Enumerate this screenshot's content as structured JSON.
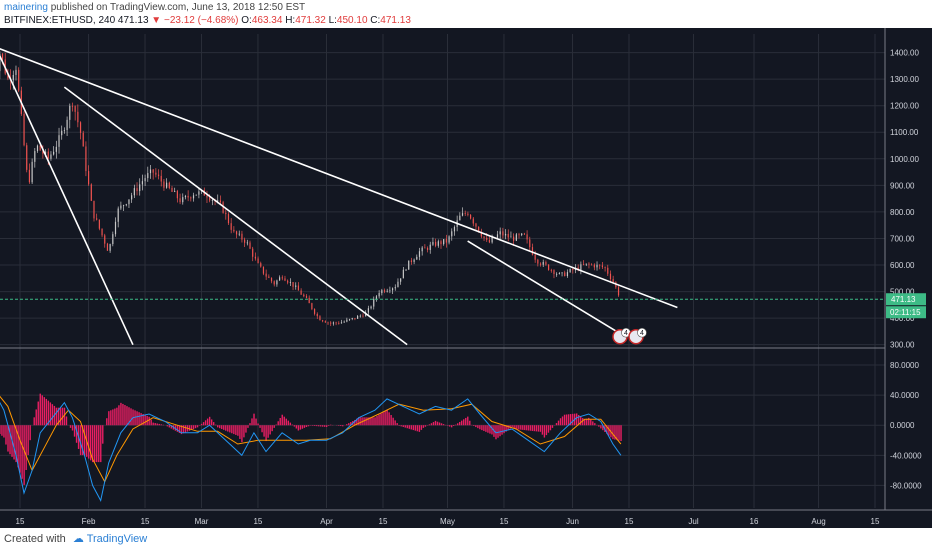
{
  "header": {
    "author": "mainering",
    "published_text": "published on TradingView.com, June 13, 2018 12:50 EST",
    "symbol": "BITFINEX:ETHUSD, 240",
    "last": "471.13",
    "change": "−23.12 (−4.68%)",
    "open_label": "O:",
    "open": "463.34",
    "high_label": "H:",
    "high": "471.32",
    "low_label": "L:",
    "low": "450.10",
    "close_label": "C:",
    "close": "471.13"
  },
  "footer": {
    "created_with": "Created with",
    "brand": "TradingView"
  },
  "colors": {
    "background": "#131722",
    "grid": "#2a2e39",
    "axis_text": "#d1d4dc",
    "trendline": "#ffffff",
    "price_line": "#3dbb86",
    "up": "#26a69a",
    "down": "#ef5350",
    "macd": "#2196f3",
    "signal": "#ff9800",
    "histogram": "#e91e63"
  },
  "chart_data": [
    {
      "type": "candlestick",
      "x_tick_labels": [
        "15",
        "Feb",
        "15",
        "Mar",
        "15",
        "Apr",
        "15",
        "May",
        "15",
        "Jun",
        "15",
        "Jul",
        "16",
        "Aug",
        "15"
      ],
      "x_tick_dates": [
        "2018-01-15",
        "2018-02-01",
        "2018-02-15",
        "2018-03-01",
        "2018-03-15",
        "2018-04-01",
        "2018-04-15",
        "2018-05-01",
        "2018-05-15",
        "2018-06-01",
        "2018-06-15",
        "2018-07-01",
        "2018-07-16",
        "2018-08-01",
        "2018-08-15"
      ],
      "y_tick_labels": [
        "300.00",
        "400.00",
        "500.00",
        "600.00",
        "700.00",
        "800.00",
        "900.00",
        "1000.00",
        "1100.00",
        "1200.00",
        "1300.00",
        "1400.00"
      ],
      "ylim": [
        295,
        1470
      ],
      "price_series": [
        [
          "2018-01-08",
          1250
        ],
        [
          "2018-01-10",
          1400
        ],
        [
          "2018-01-12",
          1300
        ],
        [
          "2018-01-14",
          1350
        ],
        [
          "2018-01-16",
          1050
        ],
        [
          "2018-01-17",
          900
        ],
        [
          "2018-01-19",
          1050
        ],
        [
          "2018-01-22",
          1000
        ],
        [
          "2018-01-25",
          1080
        ],
        [
          "2018-01-28",
          1220
        ],
        [
          "2018-01-30",
          1100
        ],
        [
          "2018-02-02",
          800
        ],
        [
          "2018-02-06",
          650
        ],
        [
          "2018-02-08",
          800
        ],
        [
          "2018-02-12",
          870
        ],
        [
          "2018-02-15",
          930
        ],
        [
          "2018-02-17",
          950
        ],
        [
          "2018-02-20",
          900
        ],
        [
          "2018-02-24",
          840
        ],
        [
          "2018-02-27",
          870
        ],
        [
          "2018-03-02",
          870
        ],
        [
          "2018-03-06",
          820
        ],
        [
          "2018-03-09",
          720
        ],
        [
          "2018-03-12",
          690
        ],
        [
          "2018-03-15",
          600
        ],
        [
          "2018-03-17",
          560
        ],
        [
          "2018-03-19",
          530
        ],
        [
          "2018-03-21",
          560
        ],
        [
          "2018-03-24",
          520
        ],
        [
          "2018-03-27",
          470
        ],
        [
          "2018-03-30",
          400
        ],
        [
          "2018-04-02",
          380
        ],
        [
          "2018-04-05",
          385
        ],
        [
          "2018-04-08",
          400
        ],
        [
          "2018-04-11",
          420
        ],
        [
          "2018-04-14",
          500
        ],
        [
          "2018-04-18",
          520
        ],
        [
          "2018-04-21",
          600
        ],
        [
          "2018-04-24",
          650
        ],
        [
          "2018-04-28",
          680
        ],
        [
          "2018-05-01",
          690
        ],
        [
          "2018-05-04",
          780
        ],
        [
          "2018-05-06",
          800
        ],
        [
          "2018-05-08",
          750
        ],
        [
          "2018-05-11",
          680
        ],
        [
          "2018-05-14",
          720
        ],
        [
          "2018-05-17",
          700
        ],
        [
          "2018-05-20",
          710
        ],
        [
          "2018-05-23",
          620
        ],
        [
          "2018-05-26",
          590
        ],
        [
          "2018-05-29",
          560
        ],
        [
          "2018-06-01",
          580
        ],
        [
          "2018-06-04",
          600
        ],
        [
          "2018-06-06",
          600
        ],
        [
          "2018-06-09",
          590
        ],
        [
          "2018-06-11",
          540
        ],
        [
          "2018-06-13",
          471
        ]
      ],
      "trendlines": [
        {
          "from": [
            "2018-01-09",
            1420
          ],
          "to": [
            "2018-02-12",
            300
          ]
        },
        {
          "from": [
            "2018-01-09",
            1420
          ],
          "to": [
            "2018-06-27",
            440
          ]
        },
        {
          "from": [
            "2018-01-26",
            1270
          ],
          "to": [
            "2018-04-21",
            300
          ]
        },
        {
          "from": [
            "2018-05-06",
            690
          ],
          "to": [
            "2018-06-13",
            340
          ]
        }
      ],
      "last_price_label": "471.13",
      "countdown_label": "02:11:15",
      "event_markers": [
        "4",
        "4"
      ]
    },
    {
      "type": "macd",
      "y_tick_labels": [
        "80.0000",
        "40.0000",
        "0.0000",
        "-40.0000",
        "-80.0000"
      ],
      "ylim": [
        -110,
        100
      ],
      "macd_series": [
        [
          "2018-01-06",
          80
        ],
        [
          "2018-01-09",
          40
        ],
        [
          "2018-01-11",
          20
        ],
        [
          "2018-01-14",
          -40
        ],
        [
          "2018-01-16",
          -90
        ],
        [
          "2018-01-18",
          -60
        ],
        [
          "2018-01-20",
          -10
        ],
        [
          "2018-01-23",
          10
        ],
        [
          "2018-01-26",
          30
        ],
        [
          "2018-01-28",
          10
        ],
        [
          "2018-01-31",
          -40
        ],
        [
          "2018-02-02",
          -80
        ],
        [
          "2018-02-04",
          -100
        ],
        [
          "2018-02-06",
          -50
        ],
        [
          "2018-02-09",
          -10
        ],
        [
          "2018-02-12",
          10
        ],
        [
          "2018-02-16",
          15
        ],
        [
          "2018-02-20",
          5
        ],
        [
          "2018-02-24",
          -10
        ],
        [
          "2018-02-28",
          -10
        ],
        [
          "2018-03-03",
          0
        ],
        [
          "2018-03-07",
          -20
        ],
        [
          "2018-03-11",
          -40
        ],
        [
          "2018-03-14",
          -10
        ],
        [
          "2018-03-17",
          -35
        ],
        [
          "2018-03-21",
          -10
        ],
        [
          "2018-03-25",
          -25
        ],
        [
          "2018-03-28",
          -20
        ],
        [
          "2018-04-01",
          -20
        ],
        [
          "2018-04-05",
          -10
        ],
        [
          "2018-04-09",
          10
        ],
        [
          "2018-04-13",
          20
        ],
        [
          "2018-04-16",
          35
        ],
        [
          "2018-04-20",
          25
        ],
        [
          "2018-04-24",
          15
        ],
        [
          "2018-04-28",
          25
        ],
        [
          "2018-05-02",
          20
        ],
        [
          "2018-05-06",
          35
        ],
        [
          "2018-05-09",
          15
        ],
        [
          "2018-05-13",
          -10
        ],
        [
          "2018-05-17",
          -5
        ],
        [
          "2018-05-21",
          -20
        ],
        [
          "2018-05-25",
          -35
        ],
        [
          "2018-05-29",
          -10
        ],
        [
          "2018-06-02",
          10
        ],
        [
          "2018-06-05",
          15
        ],
        [
          "2018-06-08",
          5
        ],
        [
          "2018-06-11",
          -25
        ],
        [
          "2018-06-13",
          -40
        ]
      ],
      "signal_series": [
        [
          "2018-01-06",
          60
        ],
        [
          "2018-01-09",
          45
        ],
        [
          "2018-01-12",
          25
        ],
        [
          "2018-01-15",
          -20
        ],
        [
          "2018-01-18",
          -60
        ],
        [
          "2018-01-21",
          -30
        ],
        [
          "2018-01-24",
          0
        ],
        [
          "2018-01-27",
          20
        ],
        [
          "2018-01-30",
          5
        ],
        [
          "2018-02-02",
          -45
        ],
        [
          "2018-02-05",
          -75
        ],
        [
          "2018-02-08",
          -40
        ],
        [
          "2018-02-12",
          -5
        ],
        [
          "2018-02-17",
          10
        ],
        [
          "2018-02-23",
          0
        ],
        [
          "2018-02-28",
          -8
        ],
        [
          "2018-03-05",
          -8
        ],
        [
          "2018-03-10",
          -25
        ],
        [
          "2018-03-15",
          -20
        ],
        [
          "2018-03-21",
          -20
        ],
        [
          "2018-03-27",
          -20
        ],
        [
          "2018-04-02",
          -18
        ],
        [
          "2018-04-08",
          0
        ],
        [
          "2018-04-14",
          15
        ],
        [
          "2018-04-19",
          28
        ],
        [
          "2018-04-25",
          20
        ],
        [
          "2018-05-02",
          22
        ],
        [
          "2018-05-07",
          28
        ],
        [
          "2018-05-12",
          5
        ],
        [
          "2018-05-18",
          -5
        ],
        [
          "2018-05-24",
          -25
        ],
        [
          "2018-05-30",
          -15
        ],
        [
          "2018-06-04",
          8
        ],
        [
          "2018-06-08",
          8
        ],
        [
          "2018-06-13",
          -25
        ]
      ]
    }
  ]
}
